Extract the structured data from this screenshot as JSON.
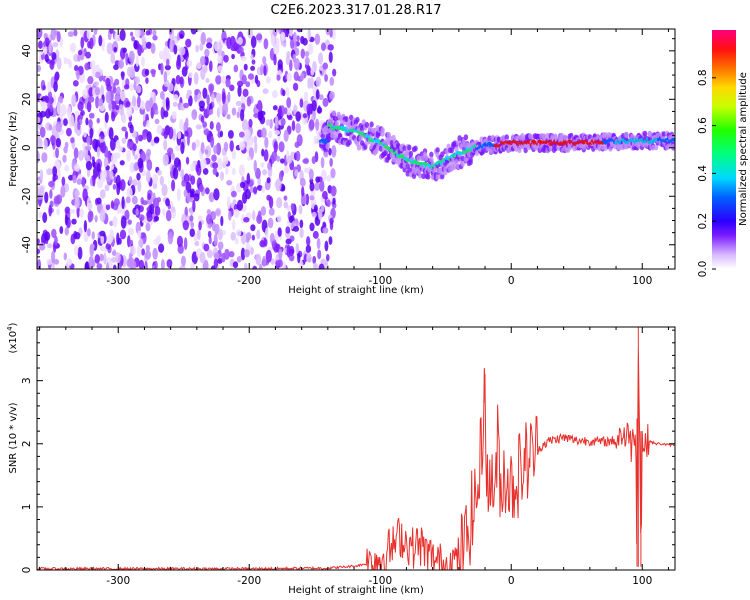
{
  "title": "C2E6.2023.317.01.28.R17",
  "chart_data": [
    {
      "type": "heatmap",
      "xlabel": "Height of straight line (km)",
      "ylabel": "Frequency (Hz)",
      "xlim": [
        -362,
        125
      ],
      "ylim": [
        -50,
        49
      ],
      "xticks": [
        -300,
        -200,
        -100,
        0,
        100
      ],
      "yticks": [
        -40,
        -20,
        0,
        20,
        40
      ],
      "colorbar": {
        "label": "Normalized spectral amplitude",
        "range": [
          0.0,
          1.0
        ],
        "ticks": [
          0.0,
          0.2,
          0.4,
          0.6,
          0.8
        ]
      },
      "description_points": [
        {
          "x": -362,
          "y_center": null,
          "amplitude": 0.15
        },
        {
          "x": -140,
          "y_center": 9,
          "amplitude": 0.3
        },
        {
          "x": -120,
          "y_center": 7,
          "amplitude": 0.45
        },
        {
          "x": -100,
          "y_center": 2,
          "amplitude": 0.45
        },
        {
          "x": -80,
          "y_center": -5,
          "amplitude": 0.45
        },
        {
          "x": -60,
          "y_center": -8,
          "amplitude": 0.4
        },
        {
          "x": -40,
          "y_center": -2,
          "amplitude": 0.4
        },
        {
          "x": -20,
          "y_center": 1,
          "amplitude": 0.6
        },
        {
          "x": 0,
          "y_center": 2,
          "amplitude": 0.85
        },
        {
          "x": 50,
          "y_center": 2,
          "amplitude": 0.8
        },
        {
          "x": 100,
          "y_center": 3,
          "amplitude": 0.5
        },
        {
          "x": 125,
          "y_center": 3,
          "amplitude": 0.4
        }
      ]
    },
    {
      "type": "line",
      "xlabel": "Height of straight line (km)",
      "ylabel": "SNR (10 * v/v)",
      "yscale_note": "(x10",
      "yscale_exp": "4",
      "yscale_close": ")",
      "xlim": [
        -362,
        125
      ],
      "ylim": [
        0,
        3.85
      ],
      "xticks": [
        -300,
        -200,
        -100,
        0,
        100
      ],
      "yticks": [
        0,
        1,
        2,
        3
      ],
      "series": [
        {
          "color": "#e8312c",
          "x": [
            -362,
            -300,
            -200,
            -140,
            -120,
            -110,
            -100,
            -95,
            -90,
            -85,
            -80,
            -75,
            -70,
            -65,
            -60,
            -55,
            -50,
            -45,
            -40,
            -35,
            -30,
            -25,
            -22,
            -20,
            -18,
            -15,
            -12,
            -10,
            -8,
            -5,
            0,
            5,
            10,
            15,
            20,
            25,
            30,
            40,
            50,
            60,
            70,
            80,
            85,
            88,
            90,
            92,
            95,
            96,
            97,
            98,
            99,
            100,
            102,
            105,
            110,
            115,
            120,
            125
          ],
          "y": [
            0.02,
            0.02,
            0.02,
            0.03,
            0.06,
            0.1,
            0.18,
            0.3,
            0.38,
            0.55,
            0.45,
            0.35,
            0.42,
            0.28,
            0.18,
            0.1,
            0.08,
            0.12,
            0.2,
            0.4,
            0.9,
            1.3,
            2.2,
            3.1,
            1.0,
            1.6,
            1.1,
            2.2,
            1.2,
            1.6,
            1.3,
            1.5,
            1.7,
            1.8,
            1.9,
            2.0,
            2.05,
            2.1,
            2.05,
            2.05,
            2.03,
            2.05,
            2.2,
            2.0,
            2.3,
            1.9,
            2.4,
            0.05,
            3.85,
            2.2,
            0.05,
            2.1,
            1.95,
            2.05,
            2.0,
            2.0,
            1.98,
            1.98
          ]
        }
      ]
    }
  ]
}
